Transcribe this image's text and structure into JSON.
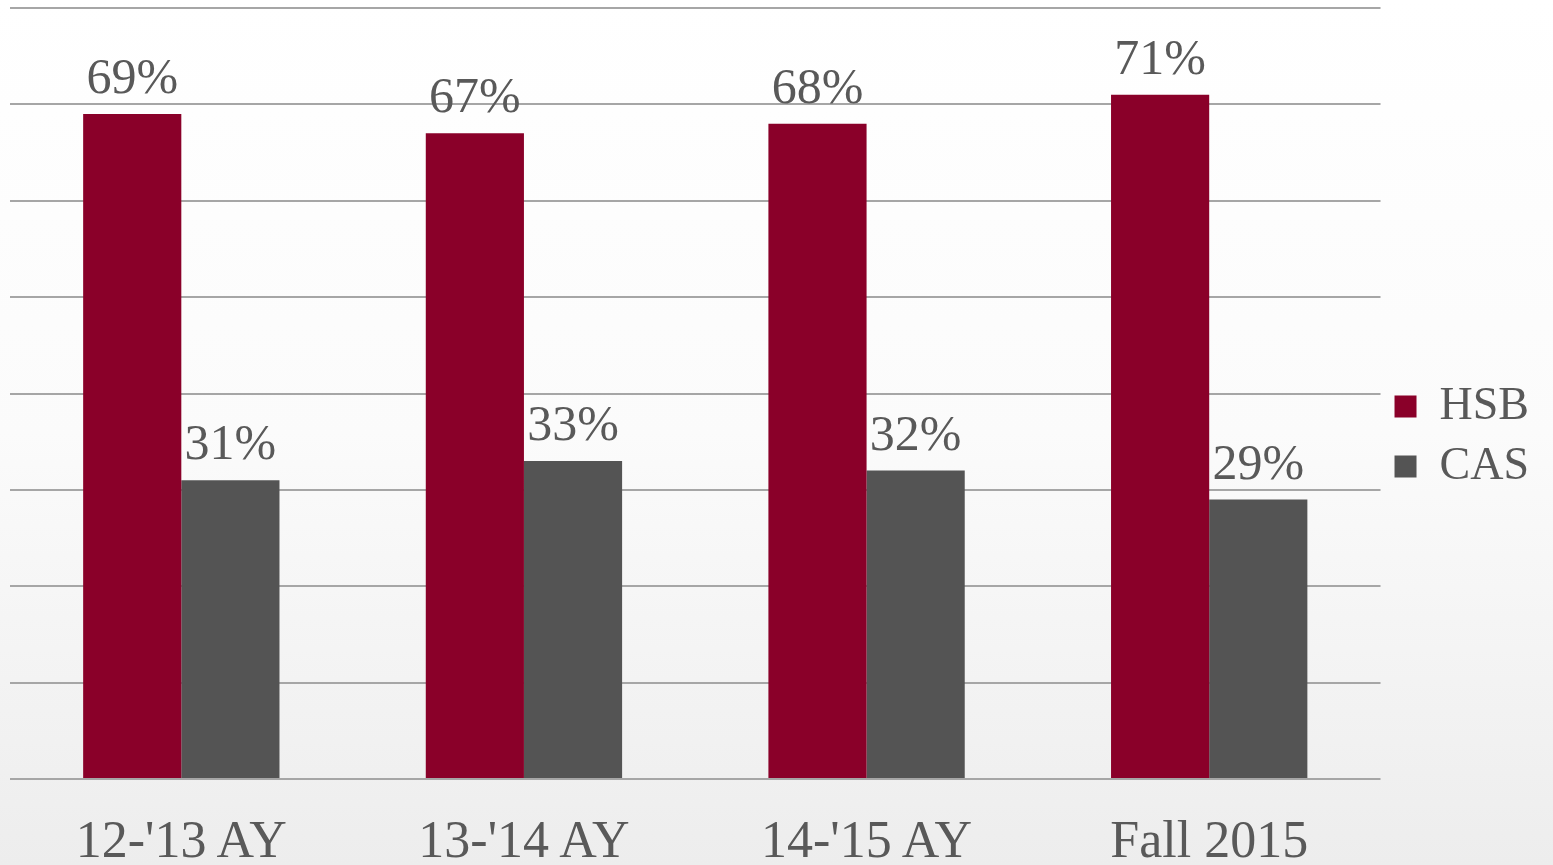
{
  "chart_data": {
    "type": "bar",
    "categories": [
      "12-'13 AY",
      "13-'14 AY",
      "14-'15 AY",
      "Fall 2015"
    ],
    "series": [
      {
        "name": "HSB",
        "color": "#8a0029",
        "values": [
          69,
          67,
          68,
          71
        ],
        "value_labels": [
          "69%",
          "67%",
          "68%",
          "71%"
        ]
      },
      {
        "name": "CAS",
        "color": "#545454",
        "values": [
          31,
          33,
          32,
          29
        ],
        "value_labels": [
          "31%",
          "33%",
          "32%",
          "29%"
        ]
      }
    ],
    "ylim": [
      0,
      80
    ],
    "yticks": [
      {
        "value": 0,
        "label": null
      },
      {
        "value": 10,
        "label": null
      },
      {
        "value": 20,
        "label": null
      },
      {
        "value": 30,
        "label": null
      },
      {
        "value": 40,
        "label": null
      },
      {
        "value": 50,
        "label": null
      },
      {
        "value": 60,
        "label": null
      },
      {
        "value": 70,
        "label": null
      },
      {
        "value": 80,
        "label": null
      }
    ],
    "grid": "y",
    "legend": "right",
    "tick_labels": "x"
  }
}
